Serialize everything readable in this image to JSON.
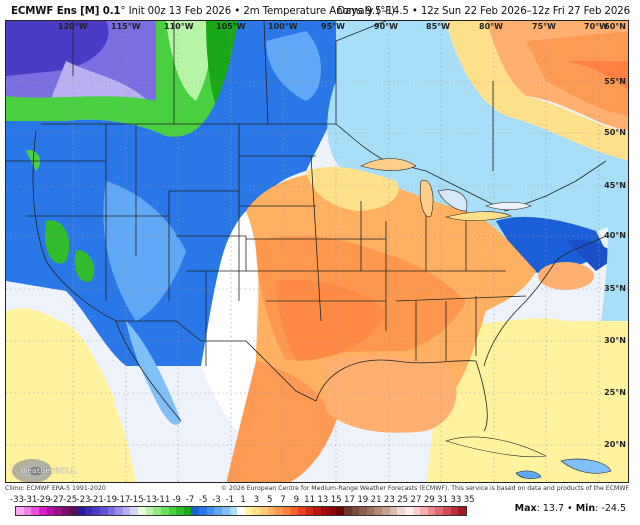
{
  "header": {
    "model": "ECMWF Ens [M] 0.1",
    "degree_symbol": "°",
    "init": "Init 00z 13 Feb 2026",
    "separator": "•",
    "variable": "2m Temperature Anomaly (°F)",
    "valid": "Days 9.5–14.5 • 12z Sun 22 Feb 2026–12z Fri 27 Feb 2026"
  },
  "map": {
    "longitude_labels": [
      "120°W",
      "115°W",
      "110°W",
      "105°W",
      "100°W",
      "95°W",
      "90°W",
      "85°W",
      "80°W",
      "75°W",
      "70°W"
    ],
    "latitude_labels": [
      "60°N",
      "55°N",
      "50°N",
      "45°N",
      "40°N",
      "35°N",
      "30°N",
      "25°N",
      "20°N"
    ],
    "logo": "WeatherBELL"
  },
  "footer": {
    "climo": "Climo: ECMWF ERA-5 1991-2020",
    "copyright": "© 2026 European Centre for Medium-Range Weather Forecasts (ECMWF). This service is based on data and products of the ECMWF."
  },
  "colorbar": {
    "labels": [
      "-33",
      "-31",
      "-29",
      "-27",
      "-25",
      "-23",
      "-21",
      "-19",
      "-17",
      "-15",
      "-13",
      "-11",
      "-9",
      "-7",
      "-5",
      "-3",
      "-1",
      "1",
      "3",
      "5",
      "7",
      "9",
      "11",
      "13",
      "15",
      "17",
      "19",
      "21",
      "23",
      "25",
      "27",
      "29",
      "31",
      "33",
      "35"
    ],
    "colors": [
      "#f7a8f0",
      "#f27ee6",
      "#e84fd9",
      "#d91ec8",
      "#b80fa8",
      "#98108a",
      "#7a0f6e",
      "#5e0c55",
      "#2a1a9a",
      "#3a2ab0",
      "#4a3cc4",
      "#5f52d4",
      "#7a6ee0",
      "#988ee8",
      "#b8b0f0",
      "#d8d4f8",
      "#e8ffe0",
      "#b8f4a8",
      "#90ec80",
      "#68e05c",
      "#48d040",
      "#30bc2c",
      "#18a818",
      "#1a5fd8",
      "#2a78e8",
      "#4090f0",
      "#60a8f5",
      "#80c0f8",
      "#a8def8",
      "#ffffff",
      "#fff5a0",
      "#ffe08a",
      "#ffca78",
      "#ffb060",
      "#ff984c",
      "#ff7f3c",
      "#f86028",
      "#e64020",
      "#d02818",
      "#b81810",
      "#a00c0c",
      "#880808",
      "#700404",
      "#6a3a30",
      "#7a4a3c",
      "#8c5e4c",
      "#a07060",
      "#b48876",
      "#c8a090",
      "#dcbcb0",
      "#eed8d0",
      "#fcf0ee",
      "#fad0d0",
      "#f4aab0",
      "#ec8890",
      "#e06a70",
      "#d04c54",
      "#bc2e38",
      "#a01a24"
    ]
  },
  "stats": {
    "max_label": "Max",
    "max_value": "13.7",
    "separator": "•",
    "min_label": "Min",
    "min_value": "-24.5"
  }
}
